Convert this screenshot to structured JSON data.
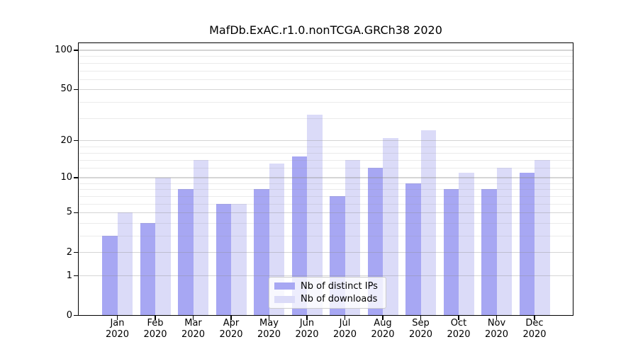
{
  "title": "MafDb.ExAC.r1.0.nonTCGA.GRCh38 2020",
  "chart_data": {
    "type": "bar",
    "title": "MafDb.ExAC.r1.0.nonTCGA.GRCh38 2020",
    "categories": [
      "Jan 2020",
      "Feb 2020",
      "Mar 2020",
      "Apr 2020",
      "May 2020",
      "Jun 2020",
      "Jul 2020",
      "Aug 2020",
      "Sep 2020",
      "Oct 2020",
      "Nov 2020",
      "Dec 2020"
    ],
    "month_labels": [
      "Jan",
      "Feb",
      "Mar",
      "Apr",
      "May",
      "Jun",
      "Jul",
      "Aug",
      "Sep",
      "Oct",
      "Nov",
      "Dec"
    ],
    "year_label": "2020",
    "series": [
      {
        "name": "Nb of distinct IPs",
        "color": "#a7a7f3",
        "values": [
          3,
          4,
          8,
          6,
          8,
          15,
          7,
          12,
          9,
          8,
          8,
          11
        ]
      },
      {
        "name": "Nb of downloads",
        "color": "#dbdbf8",
        "values": [
          5,
          10,
          14,
          6,
          13,
          32,
          14,
          21,
          24,
          11,
          12,
          14
        ]
      }
    ],
    "xlabel": "",
    "ylabel": "",
    "yscale": "log1p",
    "ylim": [
      0,
      100
    ],
    "y_major_ticks": [
      0,
      1,
      2,
      5,
      10,
      20,
      50,
      100
    ],
    "y_minor_gridlines": [
      3,
      4,
      6,
      7,
      8,
      9,
      12,
      14,
      16,
      18,
      30,
      40,
      60,
      70,
      80,
      90
    ],
    "grid": "horizontal-major-and-minor",
    "legend_position": "lower-center-inside",
    "colors": {
      "background": "#ffffff",
      "axis": "#000000",
      "major_grid": "#d5d5d5",
      "minor_grid": "#ebebeb"
    }
  }
}
